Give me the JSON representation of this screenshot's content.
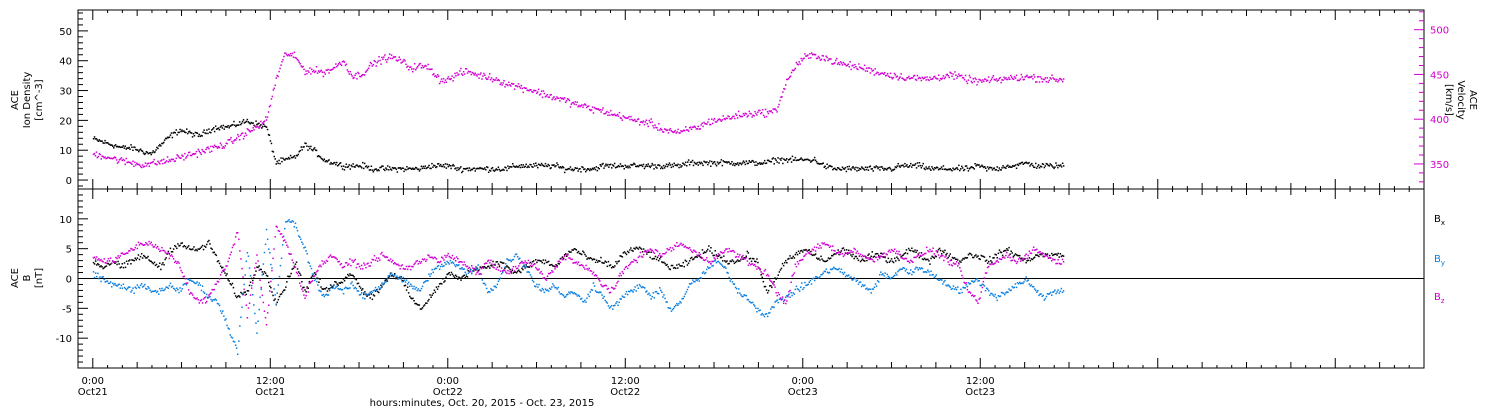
{
  "chart_data": [
    {
      "type": "scatter",
      "title": "",
      "ylabel_left": [
        "ACE",
        "Ion Density",
        "[cm^-3]"
      ],
      "ylabel_right": [
        "ACE",
        "Velocity",
        "[km/s]"
      ],
      "ylim_left": [
        -3,
        57
      ],
      "ylim_right": [
        322,
        522
      ],
      "yticks_left": [
        "0",
        "10",
        "20",
        "30",
        "40",
        "50"
      ],
      "yticks_right": [
        "350",
        "400",
        "450",
        "500"
      ],
      "series": [
        {
          "name": "Ion Density",
          "axis": "left",
          "color": "#000000",
          "x": [
            0,
            1,
            2,
            3,
            4,
            5,
            6,
            7,
            8,
            9,
            10,
            11,
            12,
            13,
            14,
            15,
            16,
            17,
            18,
            19,
            20,
            21,
            22,
            23,
            24,
            25,
            26,
            27,
            28,
            29,
            30,
            31,
            32,
            33,
            34,
            35,
            36,
            37,
            38,
            39,
            40,
            41,
            42,
            43,
            44,
            45,
            46,
            47,
            48,
            49,
            50,
            51,
            52,
            53,
            54,
            55,
            56,
            57,
            58,
            59,
            60,
            61,
            62,
            63,
            64,
            65,
            66,
            67,
            68,
            69,
            70,
            71,
            72,
            73,
            74,
            75,
            76,
            77,
            78,
            79,
            80,
            81,
            82,
            83,
            84,
            85,
            86,
            87,
            88,
            89,
            90,
            91,
            92,
            93,
            94,
            95,
            96,
            97,
            98,
            99,
            100
          ],
          "y": [
            14,
            13,
            12,
            11,
            11,
            10,
            9,
            12,
            15,
            17,
            16,
            15,
            17,
            18,
            18,
            19,
            20,
            19,
            18,
            6,
            7,
            8,
            12,
            10,
            7,
            6,
            5,
            5,
            5,
            4,
            4,
            4,
            4,
            4,
            4,
            5,
            5,
            5,
            4,
            4,
            4,
            4,
            4,
            4,
            5,
            5,
            5,
            5,
            5,
            4,
            4,
            4,
            4,
            5,
            5,
            5,
            5,
            5,
            5,
            5,
            5,
            5,
            6,
            6,
            6,
            6,
            6,
            6,
            6,
            6,
            6,
            7,
            7,
            7,
            7,
            7,
            5,
            4,
            4,
            4,
            4,
            4,
            4,
            4,
            5,
            5,
            5,
            4,
            4,
            4,
            4,
            4,
            5,
            4,
            4,
            5,
            5,
            6,
            5,
            5,
            5
          ]
        },
        {
          "name": "Velocity",
          "axis": "right",
          "color": "#d200d2",
          "x": [
            0,
            1,
            2,
            3,
            4,
            5,
            6,
            7,
            8,
            9,
            10,
            11,
            12,
            13,
            14,
            15,
            16,
            17,
            18,
            19,
            20,
            21,
            22,
            23,
            24,
            25,
            26,
            27,
            28,
            29,
            30,
            31,
            32,
            33,
            34,
            35,
            36,
            37,
            38,
            39,
            40,
            41,
            42,
            43,
            44,
            45,
            46,
            47,
            48,
            49,
            50,
            51,
            52,
            53,
            54,
            55,
            56,
            57,
            58,
            59,
            60,
            61,
            62,
            63,
            64,
            65,
            66,
            67,
            68,
            69,
            70,
            71,
            72,
            73,
            74,
            75,
            76,
            77,
            78,
            79,
            80,
            81,
            82,
            83,
            84,
            85,
            86,
            87,
            88,
            89,
            90,
            91,
            92,
            93,
            94,
            95,
            96,
            97,
            98,
            99,
            100
          ],
          "y": [
            362,
            360,
            357,
            354,
            352,
            350,
            351,
            353,
            355,
            358,
            361,
            364,
            367,
            370,
            374,
            380,
            386,
            392,
            400,
            445,
            475,
            470,
            455,
            455,
            453,
            458,
            466,
            448,
            452,
            462,
            468,
            470,
            466,
            458,
            460,
            458,
            445,
            445,
            452,
            454,
            450,
            448,
            445,
            440,
            438,
            435,
            432,
            428,
            425,
            422,
            418,
            415,
            412,
            410,
            406,
            404,
            400,
            398,
            396,
            390,
            388,
            385,
            390,
            392,
            398,
            400,
            402,
            405,
            406,
            408,
            408,
            410,
            440,
            460,
            470,
            472,
            470,
            465,
            462,
            460,
            458,
            455,
            452,
            450,
            448,
            447,
            446,
            446,
            448,
            450,
            448,
            445,
            443,
            444,
            445,
            446,
            447,
            448,
            447,
            446,
            445
          ]
        }
      ]
    },
    {
      "type": "scatter",
      "title": "",
      "ylabel_left": [
        "ACE",
        "B",
        "[nT]"
      ],
      "ylim": [
        -15,
        15
      ],
      "yticks": [
        "-10",
        "-5",
        "0",
        "5",
        "10"
      ],
      "zero_line": true,
      "legend_placement": "right",
      "series": [
        {
          "name": "Bx",
          "label_main": "B",
          "label_sub": "x",
          "color": "#000000",
          "x": [
            0,
            1,
            2,
            3,
            4,
            5,
            6,
            7,
            8,
            9,
            10,
            11,
            12,
            13,
            14,
            15,
            16,
            17,
            18,
            19,
            20,
            21,
            22,
            23,
            24,
            25,
            26,
            27,
            28,
            29,
            30,
            31,
            32,
            33,
            34,
            35,
            36,
            37,
            38,
            39,
            40,
            41,
            42,
            43,
            44,
            45,
            46,
            47,
            48,
            49,
            50,
            51,
            52,
            53,
            54,
            55,
            56,
            57,
            58,
            59,
            60,
            61,
            62,
            63,
            64,
            65,
            66,
            67,
            68,
            69,
            70,
            71,
            72,
            73,
            74,
            75,
            76,
            77,
            78,
            79,
            80,
            81,
            82,
            83,
            84,
            85,
            86,
            87,
            88,
            89,
            90,
            91,
            92,
            93,
            94,
            95,
            96,
            97,
            98,
            99,
            100
          ],
          "y": [
            3,
            2,
            3,
            2,
            3,
            4,
            3,
            2,
            5,
            6,
            5,
            5,
            6,
            3,
            0,
            -3,
            -2,
            2,
            1,
            -4,
            -1,
            3,
            -2,
            1,
            -2,
            -1,
            0,
            1,
            -2,
            -3,
            -1,
            1,
            0,
            -3,
            -5,
            -3,
            -1,
            1,
            0,
            1,
            2,
            2,
            3,
            2,
            1,
            2,
            3,
            3,
            2,
            4,
            5,
            4,
            3,
            3,
            2,
            4,
            5,
            5,
            4,
            3,
            2,
            2,
            3,
            4,
            5,
            4,
            3,
            3,
            4,
            3,
            -2,
            0,
            3,
            4,
            5,
            4,
            3,
            4,
            5,
            4,
            3,
            4,
            4,
            3,
            4,
            5,
            4,
            3,
            5,
            4,
            3,
            4,
            4,
            3,
            4,
            5,
            4,
            3,
            4,
            4,
            4
          ]
        },
        {
          "name": "By",
          "label_main": "B",
          "label_sub": "y",
          "color": "#0a7fe0",
          "x": [
            0,
            1,
            2,
            3,
            4,
            5,
            6,
            7,
            8,
            9,
            10,
            11,
            12,
            13,
            14,
            15,
            16,
            17,
            18,
            19,
            20,
            21,
            22,
            23,
            24,
            25,
            26,
            27,
            28,
            29,
            30,
            31,
            32,
            33,
            34,
            35,
            36,
            37,
            38,
            39,
            40,
            41,
            42,
            43,
            44,
            45,
            46,
            47,
            48,
            49,
            50,
            51,
            52,
            53,
            54,
            55,
            56,
            57,
            58,
            59,
            60,
            61,
            62,
            63,
            64,
            65,
            66,
            67,
            68,
            69,
            70,
            71,
            72,
            73,
            74,
            75,
            76,
            77,
            78,
            79,
            80,
            81,
            82,
            83,
            84,
            85,
            86,
            87,
            88,
            89,
            90,
            91,
            92,
            93,
            94,
            95,
            96,
            97,
            98,
            99,
            100
          ],
          "y": [
            1,
            0,
            -1,
            -1,
            -2,
            -1,
            -2,
            -2,
            -1,
            -2,
            0,
            -1,
            -3,
            -4,
            -8,
            -12,
            5,
            -9,
            8,
            -4,
            10,
            9,
            5,
            0,
            -3,
            -1,
            -2,
            -1,
            -3,
            -2,
            -1,
            1,
            0,
            -1,
            -2,
            1,
            2,
            3,
            2,
            1,
            2,
            -2,
            -1,
            3,
            4,
            2,
            -1,
            -2,
            -1,
            -3,
            -2,
            -4,
            -1,
            -3,
            -5,
            -3,
            -2,
            -1,
            -3,
            -2,
            -5,
            -4,
            -1,
            0,
            2,
            3,
            1,
            -2,
            -3,
            -5,
            -6,
            -4,
            -3,
            -2,
            -1,
            0,
            1,
            2,
            1,
            0,
            -1,
            -2,
            1,
            0,
            2,
            1,
            2,
            1,
            0,
            -1,
            -2,
            -1,
            0,
            -2,
            -3,
            -2,
            -1,
            0,
            -2,
            -3,
            -2
          ]
        },
        {
          "name": "Bz",
          "label_main": "B",
          "label_sub": "z",
          "color": "#d200d2",
          "x": [
            0,
            1,
            2,
            3,
            4,
            5,
            6,
            7,
            8,
            9,
            10,
            11,
            12,
            13,
            14,
            15,
            16,
            17,
            18,
            19,
            20,
            21,
            22,
            23,
            24,
            25,
            26,
            27,
            28,
            29,
            30,
            31,
            32,
            33,
            34,
            35,
            36,
            37,
            38,
            39,
            40,
            41,
            42,
            43,
            44,
            45,
            46,
            47,
            48,
            49,
            50,
            51,
            52,
            53,
            54,
            55,
            56,
            57,
            58,
            59,
            60,
            61,
            62,
            63,
            64,
            65,
            66,
            67,
            68,
            69,
            70,
            71,
            72,
            73,
            74,
            75,
            76,
            77,
            78,
            79,
            80,
            81,
            82,
            83,
            84,
            85,
            86,
            87,
            88,
            89,
            90,
            91,
            92,
            93,
            94,
            95,
            96,
            97,
            98,
            99,
            100
          ],
          "y": [
            4,
            3,
            3,
            4,
            5,
            6,
            6,
            5,
            4,
            2,
            -2,
            -4,
            -3,
            0,
            3,
            8,
            -6,
            4,
            -8,
            9,
            6,
            2,
            -3,
            1,
            3,
            4,
            2,
            3,
            2,
            3,
            4,
            3,
            2,
            2,
            3,
            4,
            3,
            4,
            3,
            2,
            1,
            3,
            2,
            1,
            2,
            3,
            2,
            0,
            2,
            4,
            3,
            2,
            1,
            -1,
            -2,
            1,
            3,
            4,
            5,
            4,
            5,
            6,
            5,
            4,
            3,
            4,
            5,
            4,
            3,
            2,
            1,
            -2,
            -4,
            2,
            4,
            5,
            6,
            5,
            4,
            5,
            4,
            3,
            4,
            5,
            4,
            3,
            4,
            5,
            4,
            3,
            2,
            -2,
            -4,
            2,
            3,
            4,
            3,
            4,
            5,
            4,
            3
          ]
        }
      ]
    },
    {
      "type": "scatter",
      "x_axis": {
        "label": "hours:minutes, Oct. 20, 2015 - Oct. 23, 2015",
        "xlim_hours": [
          -1,
          90
        ],
        "ticks": [
          {
            "hour": 0,
            "time": "0:00",
            "date": "Oct21"
          },
          {
            "hour": 12,
            "time": "12:00",
            "date": "Oct21"
          },
          {
            "hour": 24,
            "time": "0:00",
            "date": "Oct22"
          },
          {
            "hour": 36,
            "time": "12:00",
            "date": "Oct22"
          },
          {
            "hour": 48,
            "time": "0:00",
            "date": "Oct23"
          },
          {
            "hour": 60,
            "time": "12:00",
            "date": "Oct23"
          }
        ],
        "data_end_hour": 65
      }
    }
  ]
}
